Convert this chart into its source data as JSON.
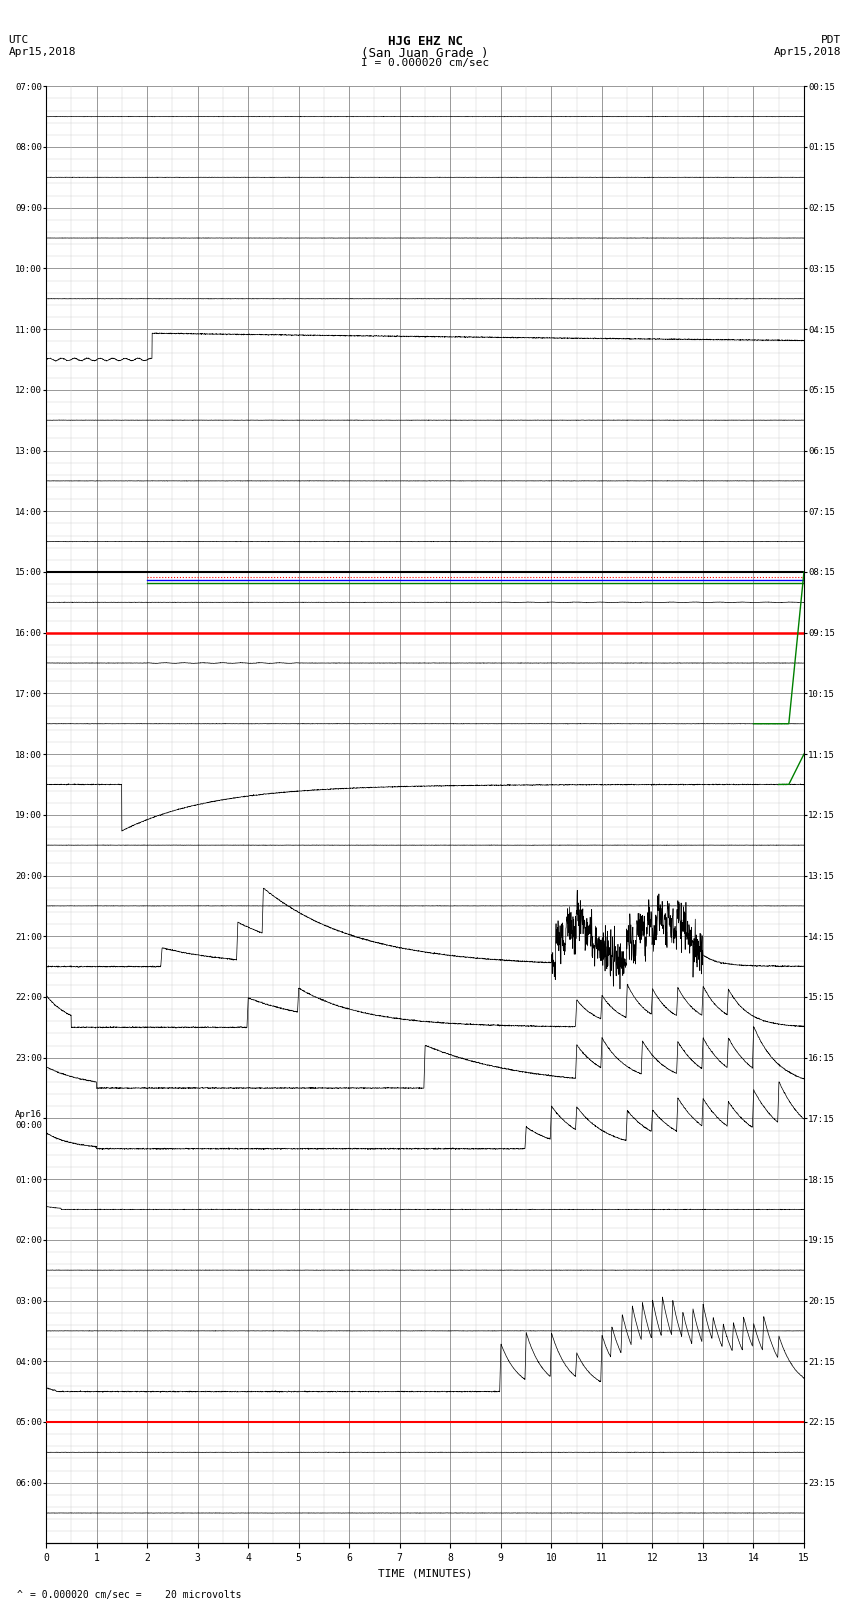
{
  "title_line1": "HJG EHZ NC",
  "title_line2": "(San Juan Grade )",
  "title_scale": "I = 0.000020 cm/sec",
  "left_label": "UTC",
  "left_date": "Apr15,2018",
  "right_label": "PDT",
  "right_date": "Apr15,2018",
  "xlabel": "TIME (MINUTES)",
  "caption": "= 0.000020 cm/sec =    20 microvolts",
  "xlim": [
    0,
    15
  ],
  "num_rows": 24,
  "utc_times": [
    "07:00",
    "08:00",
    "09:00",
    "10:00",
    "11:00",
    "12:00",
    "13:00",
    "14:00",
    "15:00",
    "16:00",
    "17:00",
    "18:00",
    "19:00",
    "20:00",
    "21:00",
    "22:00",
    "23:00",
    "Apr16\n00:00",
    "01:00",
    "02:00",
    "03:00",
    "04:00",
    "05:00",
    "06:00"
  ],
  "pdt_times": [
    "00:15",
    "01:15",
    "02:15",
    "03:15",
    "04:15",
    "05:15",
    "06:15",
    "07:15",
    "08:15",
    "09:15",
    "10:15",
    "11:15",
    "12:15",
    "13:15",
    "14:15",
    "15:15",
    "16:15",
    "17:15",
    "18:15",
    "19:15",
    "20:15",
    "21:15",
    "22:15",
    "23:15"
  ],
  "bg_color": "#ffffff",
  "grid_color_major": "#888888",
  "grid_color_minor": "#cccccc",
  "figsize": [
    8.5,
    16.13
  ],
  "dpi": 100
}
